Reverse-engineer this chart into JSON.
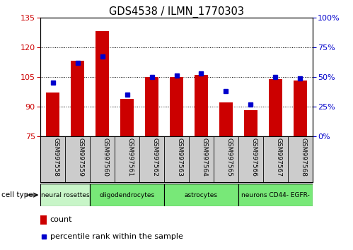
{
  "title": "GDS4538 / ILMN_1770303",
  "samples": [
    "GSM997558",
    "GSM997559",
    "GSM997560",
    "GSM997561",
    "GSM997562",
    "GSM997563",
    "GSM997564",
    "GSM997565",
    "GSM997566",
    "GSM997567",
    "GSM997568"
  ],
  "count_values": [
    97,
    113,
    128,
    94,
    105,
    105,
    106,
    92,
    88,
    104,
    103
  ],
  "percentile_values": [
    45,
    62,
    67,
    35,
    50,
    51,
    53,
    38,
    27,
    50,
    49
  ],
  "ylim_left": [
    75,
    135
  ],
  "ylim_right": [
    0,
    100
  ],
  "yticks_left": [
    75,
    90,
    105,
    120,
    135
  ],
  "yticks_right": [
    0,
    25,
    50,
    75,
    100
  ],
  "group_bounds": [
    {
      "start": 0,
      "end": 2,
      "label": "neural rosettes",
      "color": "#c8f5c8"
    },
    {
      "start": 2,
      "end": 5,
      "label": "oligodendrocytes",
      "color": "#78e878"
    },
    {
      "start": 5,
      "end": 8,
      "label": "astrocytes",
      "color": "#78e878"
    },
    {
      "start": 8,
      "end": 11,
      "label": "neurons CD44- EGFR-",
      "color": "#78e878"
    }
  ],
  "bar_color": "#cc0000",
  "dot_color": "#0000cc",
  "bar_width": 0.55,
  "left_tick_color": "#cc0000",
  "right_tick_color": "#0000cc",
  "tick_area_color": "#cccccc",
  "legend_rect_color": "#cc0000",
  "legend_dot_color": "#0000cc"
}
